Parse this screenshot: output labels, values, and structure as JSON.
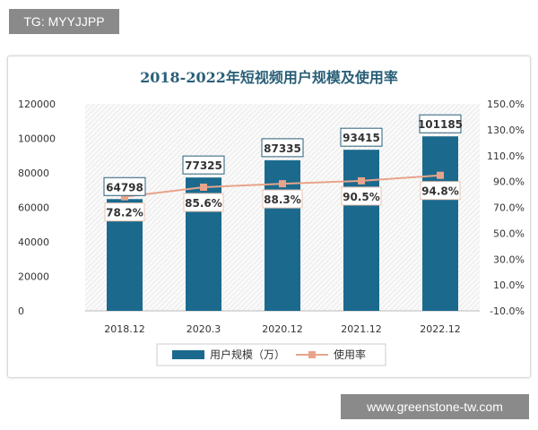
{
  "tag": "TG: MYYJJPP",
  "site": "www.greenstone-tw.com",
  "chart_data": {
    "type": "bar+line",
    "title": "2018-2022年短视频用户规模及使用率",
    "categories": [
      "2018.12",
      "2020.3",
      "2020.12",
      "2021.12",
      "2022.12"
    ],
    "series": [
      {
        "name": "用户规模（万）",
        "type": "bar",
        "axis": "left",
        "values": [
          64798,
          77325,
          87335,
          93415,
          101185
        ],
        "labels": [
          "64798",
          "77325",
          "87335",
          "93415",
          "101185"
        ]
      },
      {
        "name": "使用率",
        "type": "line",
        "axis": "right",
        "values": [
          78.2,
          85.6,
          88.3,
          90.5,
          94.8
        ],
        "labels": [
          "78.2%",
          "85.6%",
          "88.3%",
          "90.5%",
          "94.8%"
        ]
      }
    ],
    "left_axis": {
      "ylim": [
        0,
        120000
      ],
      "ticks": [
        "0",
        "20000",
        "40000",
        "60000",
        "80000",
        "100000",
        "120000"
      ]
    },
    "right_axis": {
      "ylim": [
        -10,
        150
      ],
      "ticks": [
        "-10.0%",
        "10.0%",
        "30.0%",
        "50.0%",
        "70.0%",
        "90.0%",
        "110.0%",
        "130.0%",
        "150.0%"
      ]
    },
    "legend_position": "bottom",
    "colors": {
      "bar": "#1b6a8e",
      "line": "#e8a48a",
      "title": "#2a5f78"
    }
  }
}
